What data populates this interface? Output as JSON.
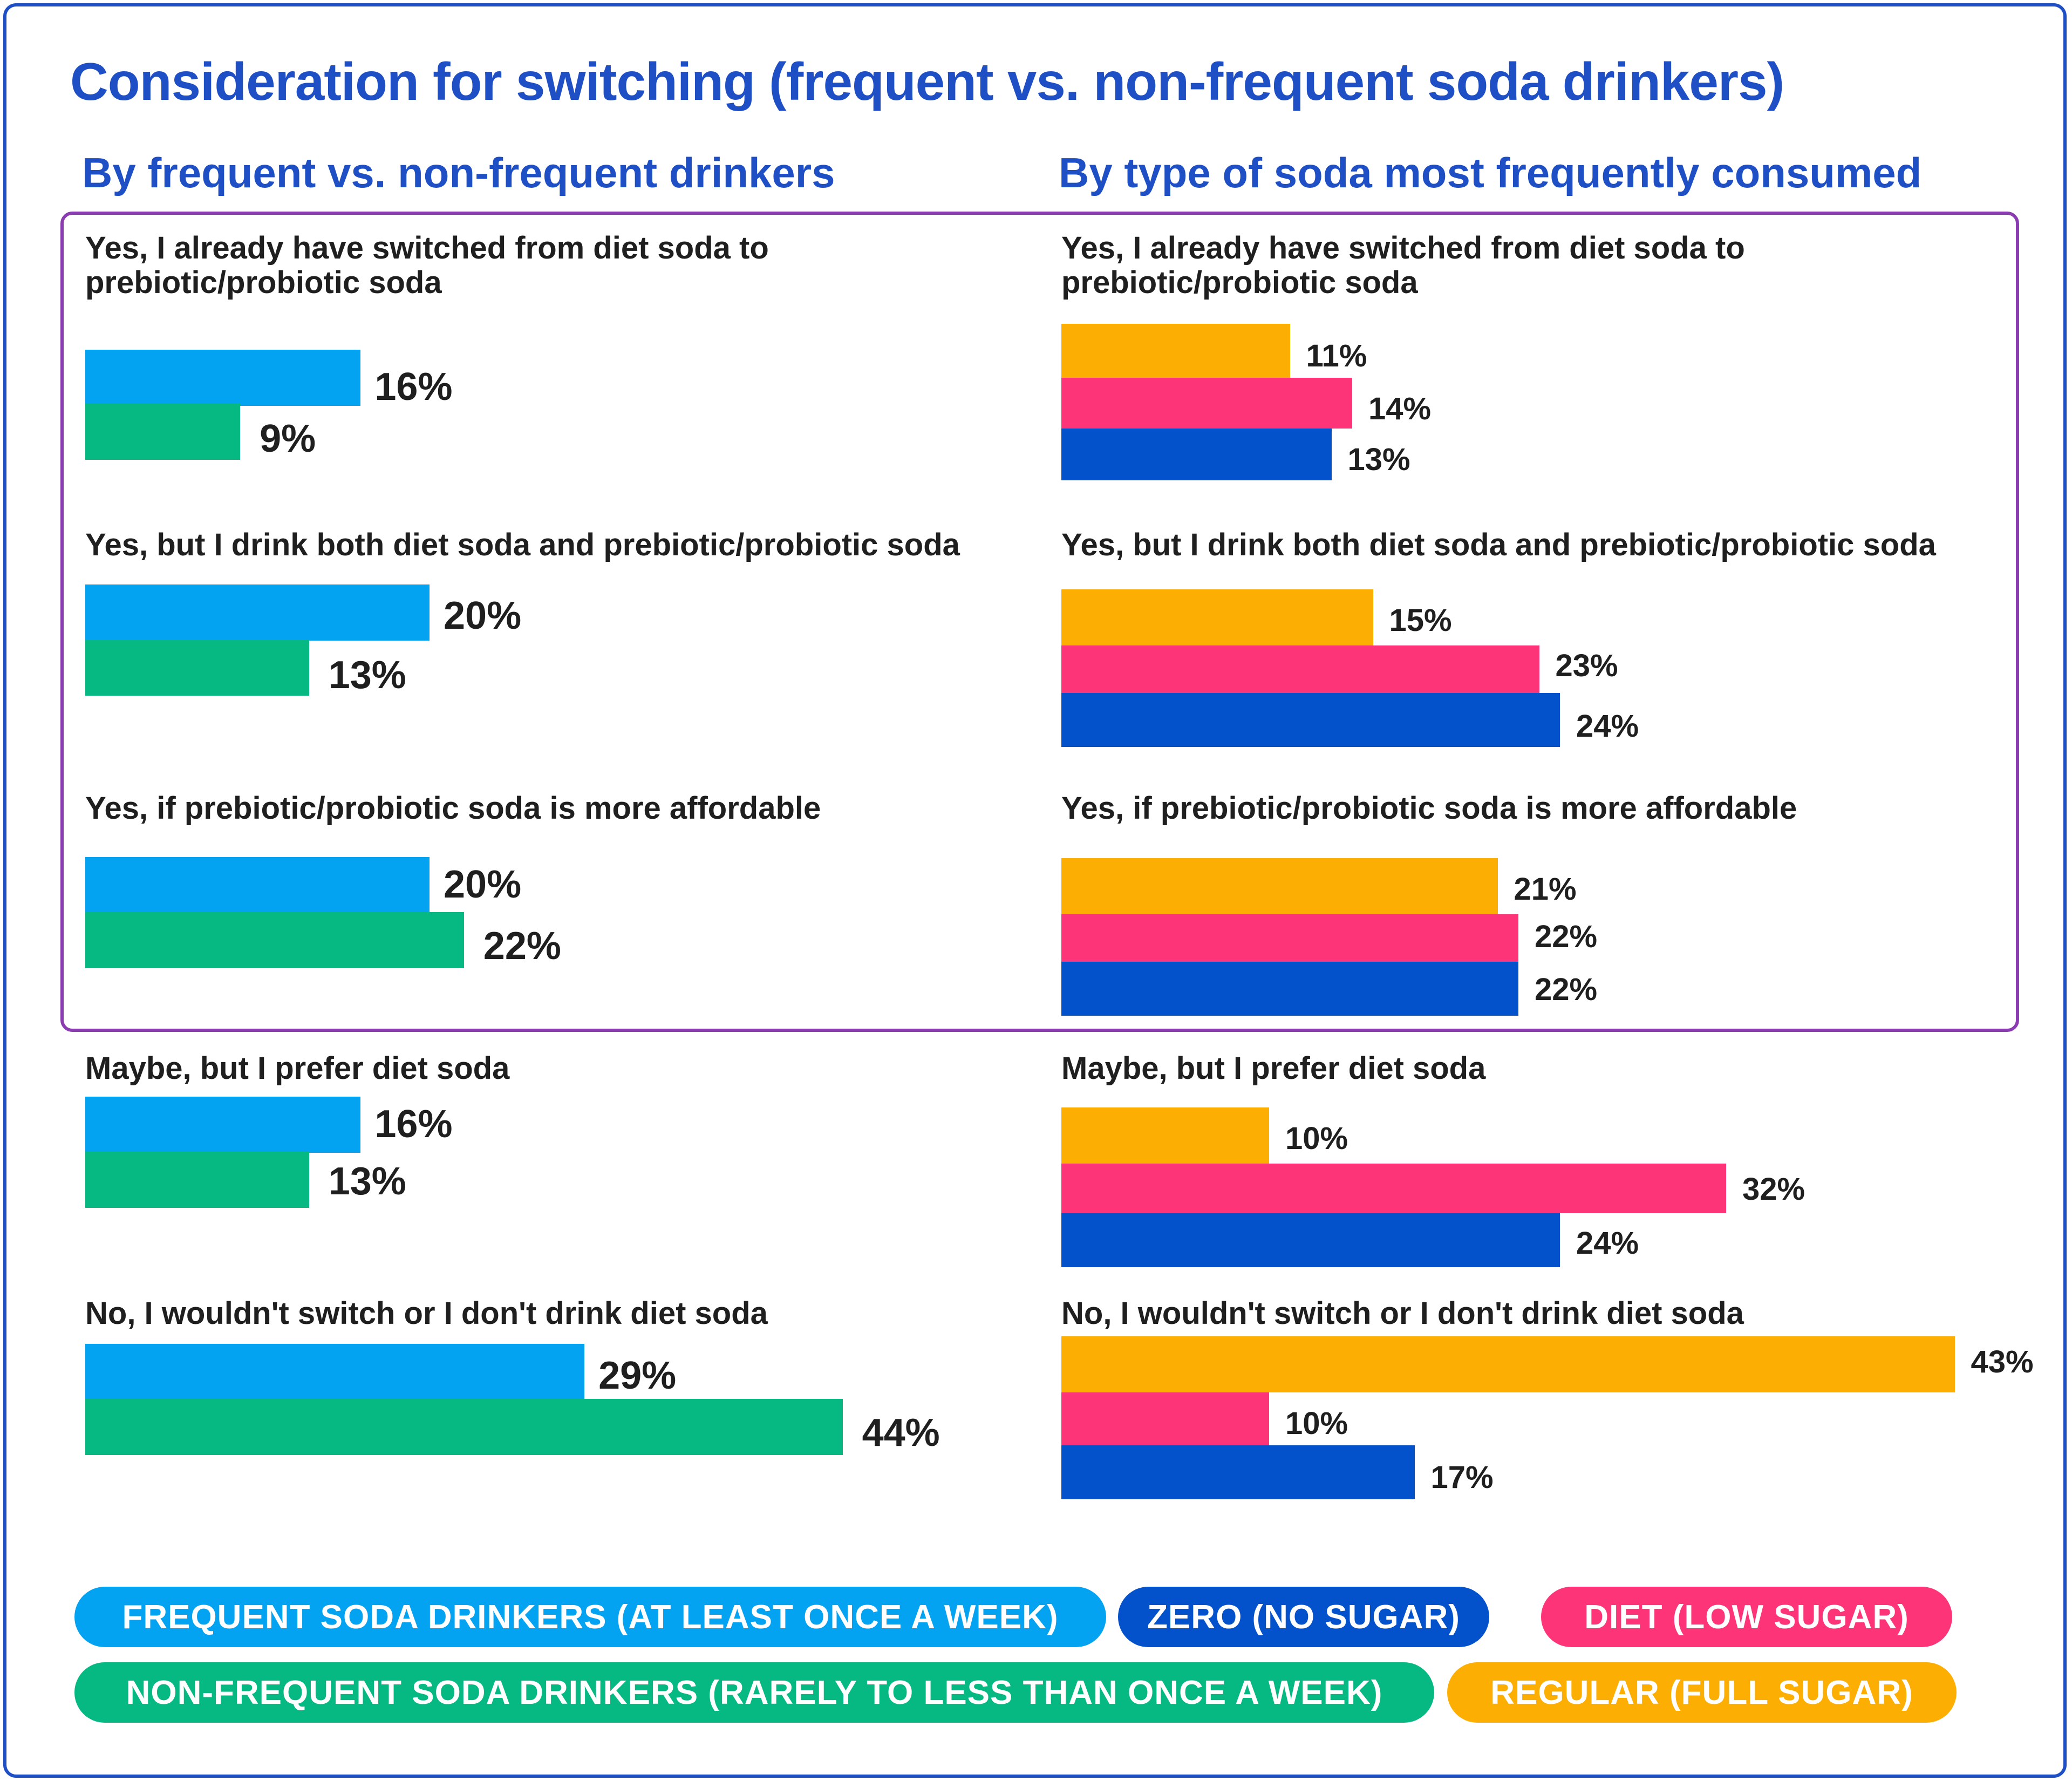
{
  "title": "Consideration for switching (frequent vs. non-frequent soda drinkers)",
  "colors": {
    "frequent": "#03a3f2",
    "non_frequent": "#06b882",
    "zero": "#0352cc",
    "diet": "#fd3578",
    "regular": "#fdae02",
    "highlight_border": "#8a3cb0",
    "accent": "#1f4fc4"
  },
  "chart_data": [
    {
      "type": "bar",
      "orientation": "horizontal",
      "title": "By frequent vs. non-frequent drinkers",
      "value_unit": "%",
      "categories": [
        "Yes, I already have switched from diet soda to prebiotic/probiotic soda",
        "Yes, but I drink both diet soda and prebiotic/probiotic soda",
        "Yes, if prebiotic/probiotic soda is more affordable",
        "Maybe, but I prefer diet soda",
        "No, I wouldn't switch or I don't drink diet soda"
      ],
      "series": [
        {
          "name": "FREQUENT SODA DRINKERS (AT LEAST ONCE A WEEK)",
          "color": "#03a3f2",
          "values": [
            16,
            20,
            20,
            16,
            29
          ]
        },
        {
          "name": "NON-FREQUENT SODA DRINKERS (RARELY TO LESS THAN ONCE A WEEK)",
          "color": "#06b882",
          "values": [
            9,
            13,
            22,
            13,
            44
          ]
        }
      ],
      "value_labels": [
        [
          "16%",
          "20%",
          "20%",
          "16%",
          "29%"
        ],
        [
          "9%",
          "13%",
          "22%",
          "13%",
          "44%"
        ]
      ],
      "highlighted_categories": 3
    },
    {
      "type": "bar",
      "orientation": "horizontal",
      "title": "By type of soda most frequently consumed",
      "value_unit": "%",
      "categories": [
        "Yes, I already have switched from diet soda to prebiotic/probiotic soda",
        "Yes, but I drink both diet soda and prebiotic/probiotic soda",
        "Yes, if prebiotic/probiotic soda is more affordable",
        "Maybe, but I prefer diet soda",
        "No, I wouldn't switch or I don't drink diet soda"
      ],
      "series": [
        {
          "name": "REGULAR (FULL SUGAR)",
          "color": "#fdae02",
          "values": [
            11,
            15,
            21,
            10,
            43
          ]
        },
        {
          "name": "DIET (LOW SUGAR)",
          "color": "#fd3578",
          "values": [
            14,
            23,
            22,
            32,
            10
          ]
        },
        {
          "name": "ZERO (NO SUGAR)",
          "color": "#0352cc",
          "values": [
            13,
            24,
            22,
            24,
            17
          ]
        }
      ],
      "value_labels": [
        [
          "11%",
          "15%",
          "21%",
          "10%",
          "43%"
        ],
        [
          "14%",
          "23%",
          "22%",
          "32%",
          "10%"
        ],
        [
          "13%",
          "24%",
          "22%",
          "24%",
          "17%"
        ]
      ],
      "highlighted_categories": 3
    }
  ],
  "legend": {
    "row1": [
      {
        "label": "FREQUENT SODA DRINKERS (AT LEAST ONCE A WEEK)",
        "color": "#03a3f2"
      },
      {
        "label": "ZERO (NO SUGAR)",
        "color": "#0352cc"
      },
      {
        "label": "DIET (LOW SUGAR)",
        "color": "#fd3578"
      }
    ],
    "row2": [
      {
        "label": "NON-FREQUENT SODA DRINKERS (RARELY TO LESS THAN ONCE A WEEK)",
        "color": "#06b882"
      },
      {
        "label": "REGULAR (FULL SUGAR)",
        "color": "#fdae02"
      }
    ]
  }
}
